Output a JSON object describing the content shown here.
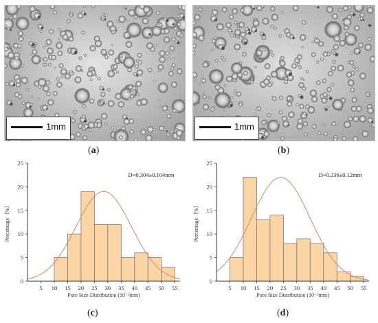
{
  "panels": [
    {
      "id": "a",
      "label_open": "(",
      "letter": "a",
      "label_close": ")",
      "scale": "1mm"
    },
    {
      "id": "b",
      "label_open": "(",
      "letter": "b",
      "label_close": ")",
      "scale": "1mm"
    },
    {
      "id": "c",
      "label_open": "(",
      "letter": "c",
      "label_close": ")"
    },
    {
      "id": "d",
      "label_open": "(",
      "letter": "d",
      "label_close": ")"
    }
  ],
  "colors": {
    "bar_fill": "#fcd5a6",
    "bar_stroke": "#7a7a7a",
    "curve": "#c98b6a",
    "axis": "#333333"
  },
  "chart_data": [
    {
      "type": "bar",
      "ylabel": "Percentage（%）",
      "xlabel": "Pore Size Distribution (10⁻²mm)",
      "annotation": "D=0.304±0.104mm",
      "x_ticks": [
        5,
        10,
        15,
        20,
        25,
        30,
        35,
        40,
        45,
        50,
        55
      ],
      "y_ticks": [
        0,
        5,
        10,
        15,
        20,
        25
      ],
      "xlim": [
        0,
        57
      ],
      "ylim": [
        0,
        25
      ],
      "bins": [
        {
          "from": 10,
          "to": 15,
          "value": 5
        },
        {
          "from": 15,
          "to": 20,
          "value": 10
        },
        {
          "from": 20,
          "to": 25,
          "value": 19
        },
        {
          "from": 25,
          "to": 30,
          "value": 12
        },
        {
          "from": 30,
          "to": 35,
          "value": 12
        },
        {
          "from": 35,
          "to": 40,
          "value": 5
        },
        {
          "from": 40,
          "to": 45,
          "value": 6
        },
        {
          "from": 45,
          "to": 50,
          "value": 5
        },
        {
          "from": 50,
          "to": 55,
          "value": 3
        }
      ],
      "fit": {
        "type": "normal",
        "mean": 28.5,
        "sd": 10.4,
        "peak": 19
      }
    },
    {
      "type": "bar",
      "ylabel": "Percentage（%）",
      "xlabel": "Pore Size Distribution (10⁻²mm)",
      "annotation": "D=0.236±0.12mm",
      "x_ticks": [
        5,
        10,
        15,
        20,
        25,
        30,
        35,
        40,
        45,
        50,
        55
      ],
      "y_ticks": [
        0,
        5,
        10,
        15,
        20,
        25
      ],
      "xlim": [
        0,
        57
      ],
      "ylim": [
        0,
        25
      ],
      "bins": [
        {
          "from": 5,
          "to": 10,
          "value": 5
        },
        {
          "from": 10,
          "to": 15,
          "value": 22
        },
        {
          "from": 15,
          "to": 20,
          "value": 13
        },
        {
          "from": 20,
          "to": 25,
          "value": 14
        },
        {
          "from": 25,
          "to": 30,
          "value": 8
        },
        {
          "from": 30,
          "to": 35,
          "value": 9
        },
        {
          "from": 35,
          "to": 40,
          "value": 8
        },
        {
          "from": 40,
          "to": 45,
          "value": 6
        },
        {
          "from": 45,
          "to": 50,
          "value": 2
        },
        {
          "from": 50,
          "to": 55,
          "value": 1
        }
      ],
      "fit": {
        "type": "normal",
        "mean": 24,
        "sd": 11,
        "peak": 22
      }
    }
  ]
}
